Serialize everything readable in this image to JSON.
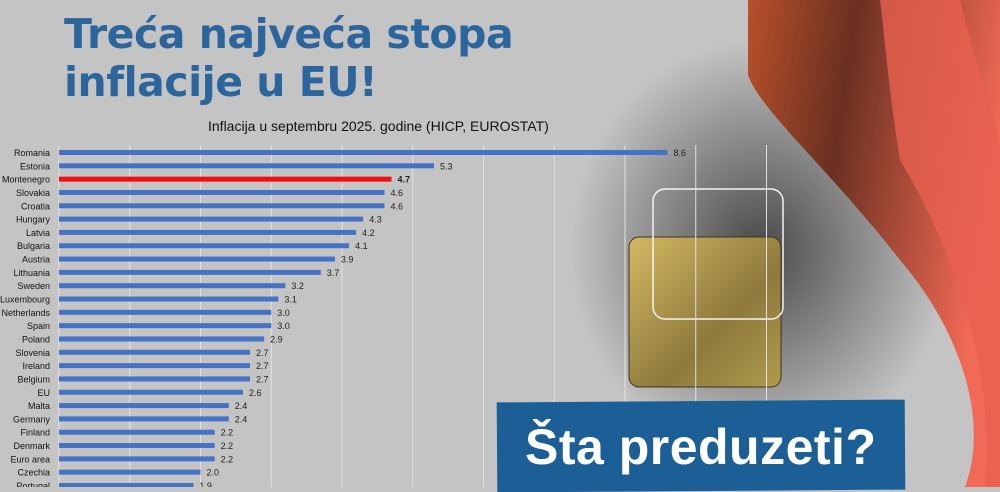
{
  "title_line1": "Treća najveća stopa",
  "title_line2": "inflacije u EU!",
  "banner": "Šta preduzeti?",
  "colors": {
    "bar": "#4472c4",
    "highlight": "#ee1111",
    "title": "#2c659c",
    "banner": "#1c5f96"
  },
  "chart_data": {
    "type": "bar",
    "orientation": "horizontal",
    "title": "Inflacija u septembru 2025. godine (HICP, EUROSTAT)",
    "categories": [
      "Romania",
      "Estonia",
      "Montenegro",
      "Slovakia",
      "Croatia",
      "Hungary",
      "Latvia",
      "Bulgaria",
      "Austria",
      "Lithuania",
      "Sweden",
      "Luxembourg",
      "Netherlands",
      "Spain",
      "Poland",
      "Slovenia",
      "Ireland",
      "Belgium",
      "EU",
      "Malta",
      "Germany",
      "Finland",
      "Denmark",
      "Euro area",
      "Czechia",
      "Portugal"
    ],
    "values": [
      8.6,
      5.3,
      4.7,
      4.6,
      4.6,
      4.3,
      4.2,
      4.1,
      3.9,
      3.7,
      3.2,
      3.1,
      3.0,
      3.0,
      2.9,
      2.7,
      2.7,
      2.7,
      2.6,
      2.4,
      2.4,
      2.2,
      2.2,
      2.2,
      2.0,
      1.9
    ],
    "value_labels": [
      "8.6",
      "5.3",
      "4.7",
      "4.6",
      "4.6",
      "4.3",
      "4.2",
      "4.1",
      "3.9",
      "3.7",
      "3.2",
      "3.1",
      "3.0",
      "3.0",
      "2.9",
      "2.7",
      "2.7",
      "2.7",
      "2.6",
      "2.4",
      "2.4",
      "2.2",
      "2.2",
      "2.2",
      "2.0",
      "1.9"
    ],
    "highlight": "Montenegro",
    "xlim": [
      0,
      10
    ],
    "grid": true
  }
}
